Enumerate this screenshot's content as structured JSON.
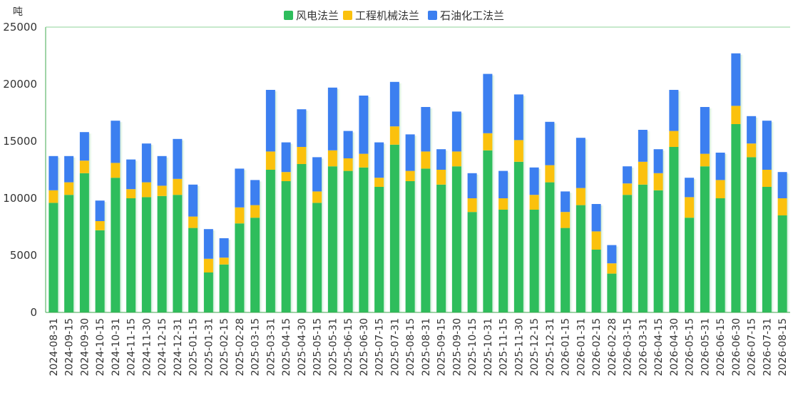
{
  "chart_data": {
    "type": "bar",
    "stacked": true,
    "unit_label": "吨",
    "categories": [
      "2024-08-31",
      "2024-09-15",
      "2024-09-30",
      "2024-10-15",
      "2024-10-31",
      "2024-11-15",
      "2024-11-30",
      "2024-12-15",
      "2024-12-31",
      "2025-01-15",
      "2025-01-31",
      "2025-02-15",
      "2025-02-28",
      "2025-03-15",
      "2025-03-31",
      "2025-04-15",
      "2025-04-30",
      "2025-05-15",
      "2025-05-31",
      "2025-06-15",
      "2025-06-30",
      "2025-07-15",
      "2025-07-31",
      "2025-08-15",
      "2025-08-31",
      "2025-09-15",
      "2025-09-30",
      "2025-10-15",
      "2025-10-31",
      "2025-11-15",
      "2025-11-30",
      "2025-12-15",
      "2025-12-31",
      "2026-01-15",
      "2026-01-31",
      "2026-02-15",
      "2026-02-28",
      "2026-03-15",
      "2026-03-31",
      "2026-04-15",
      "2026-04-30",
      "2026-05-15",
      "2026-05-31",
      "2026-06-15",
      "2026-06-30",
      "2026-07-15",
      "2026-07-31",
      "2026-08-15"
    ],
    "series": [
      {
        "name": "风电法兰",
        "color": "#2ebd5c",
        "values": [
          9600,
          10300,
          12200,
          7200,
          11800,
          10000,
          10100,
          10200,
          10300,
          7400,
          3500,
          4200,
          7800,
          8300,
          12500,
          11500,
          13000,
          9600,
          12800,
          12400,
          12700,
          11000,
          14700,
          11500,
          12600,
          11200,
          12800,
          8800,
          14200,
          9000,
          13200,
          9000,
          11400,
          7400,
          9400,
          5500,
          3400,
          10300,
          11200,
          10700,
          14500,
          8300,
          12800,
          10000,
          16500,
          13600,
          11000,
          8500
        ]
      },
      {
        "name": "工程机械法兰",
        "color": "#fbc10d",
        "values": [
          1100,
          1100,
          1100,
          800,
          1300,
          800,
          1300,
          900,
          1400,
          1000,
          1200,
          600,
          1400,
          1100,
          1600,
          800,
          1500,
          1000,
          1400,
          1100,
          1200,
          800,
          1600,
          900,
          1500,
          1300,
          1300,
          1200,
          1500,
          1000,
          1900,
          1300,
          1500,
          1400,
          1500,
          1600,
          900,
          1000,
          2000,
          1500,
          1400,
          1800,
          1100,
          1600,
          1600,
          1200,
          1500,
          1500
        ]
      },
      {
        "name": "石油化工法兰",
        "color": "#3c7ff0",
        "values": [
          3000,
          2300,
          2500,
          1800,
          3700,
          2600,
          3400,
          2600,
          3500,
          2800,
          2600,
          1700,
          3400,
          2200,
          5400,
          2600,
          3300,
          3000,
          5500,
          2400,
          5100,
          3100,
          3900,
          3200,
          3900,
          1800,
          3500,
          2200,
          5200,
          2400,
          4000,
          2400,
          3800,
          1800,
          4400,
          2400,
          1600,
          1500,
          2800,
          2100,
          3600,
          1700,
          4100,
          2400,
          4600,
          2400,
          4300,
          2300
        ]
      }
    ],
    "y_ticks": [
      0,
      5000,
      10000,
      15000,
      20000,
      25000
    ],
    "ylim": [
      0,
      25000
    ],
    "legend_position": "top-center",
    "grid": false
  }
}
